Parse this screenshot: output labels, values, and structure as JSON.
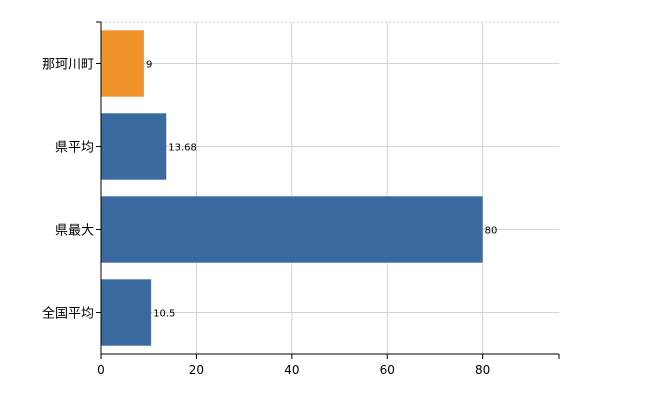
{
  "chart_data": {
    "type": "bar",
    "orientation": "horizontal",
    "categories": [
      "那珂川町",
      "県平均",
      "県最大",
      "全国平均"
    ],
    "values": [
      9,
      13.68,
      80,
      10.5
    ],
    "data_labels": [
      "9",
      "13.68",
      "80",
      "10.5"
    ],
    "bar_colors": [
      "#f0932b",
      "#3b6aa0",
      "#3b6aa0",
      "#3b6aa0"
    ],
    "x_ticks": [
      0,
      20,
      40,
      60,
      80
    ],
    "x_tick_labels": [
      "0",
      "20",
      "40",
      "60",
      "80"
    ],
    "xlim": [
      0,
      96
    ],
    "grid": true,
    "title": "",
    "xlabel": "",
    "ylabel": ""
  }
}
